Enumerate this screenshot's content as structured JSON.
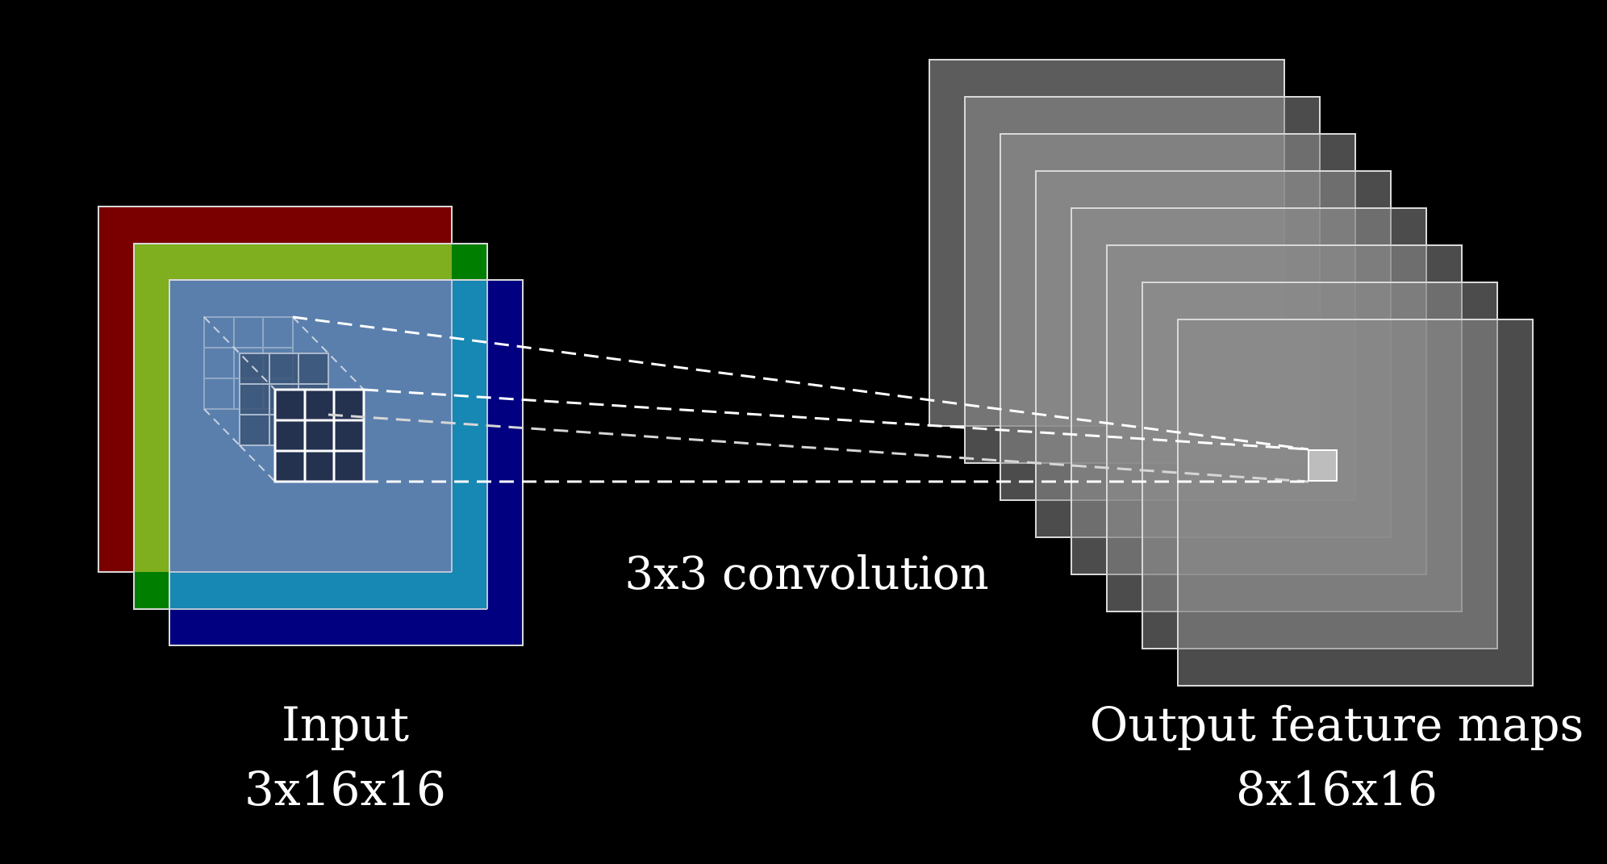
{
  "input": {
    "label": "Input",
    "size": "3x16x16",
    "channels": [
      {
        "color": "#7a0000"
      },
      {
        "color": "#7fae1f"
      },
      {
        "color": "#000080"
      }
    ],
    "overlay_color": "#5a82b4"
  },
  "operation": {
    "label": "3x3 convolution"
  },
  "output": {
    "label": "Output feature maps",
    "size": "8x16x16",
    "map_count": 8,
    "map_color": "#7a7a7a"
  },
  "colors": {
    "background": "#000000",
    "border": "#d8d8d8",
    "kernel": "#243250",
    "line": "#ffffff"
  }
}
